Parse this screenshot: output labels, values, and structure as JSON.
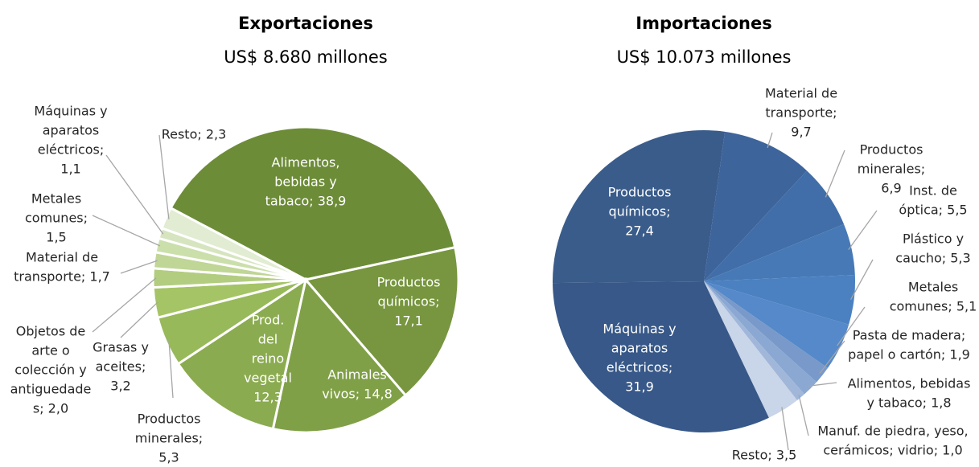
{
  "chart_data": [
    {
      "type": "pie",
      "title": "Exportaciones",
      "subtitle": "US$ 8.680 millones",
      "values": [
        38.9,
        17.1,
        14.8,
        12.3,
        5.3,
        3.2,
        2.0,
        1.7,
        1.5,
        1.1,
        2.3
      ],
      "labels": [
        [
          "Alimentos,",
          "bebidas y",
          "tabaco; 38,9"
        ],
        [
          "Productos",
          "químicos;",
          "17,1"
        ],
        [
          "Animales",
          "vivos; 14,8"
        ],
        [
          "Prod.",
          "del",
          "reino",
          "vegetal",
          "12,3"
        ],
        [
          "Productos",
          "minerales;",
          "5,3"
        ],
        [
          "Grasas y",
          "aceites;",
          "3,2"
        ],
        [
          "Objetos de",
          "arte o",
          "colección y",
          "antiguedade",
          "s; 2,0"
        ],
        [
          "Material de",
          "transporte; 1,7"
        ],
        [
          "Metales",
          "comunes;",
          "1,5"
        ],
        [
          "Máquinas y",
          "aparatos",
          "eléctricos;",
          "1,1"
        ],
        [
          "Resto; 2,3"
        ]
      ],
      "colors": [
        "#6d8c38",
        "#77963f",
        "#80a047",
        "#8bab50",
        "#98b95a",
        "#a5c466",
        "#b3cd80",
        "#c0d696",
        "#cbdfab",
        "#d6e5bf",
        "#e1ecd2"
      ]
    },
    {
      "type": "pie",
      "title": "Importaciones",
      "subtitle": "US$ 10.073 millones",
      "values": [
        9.7,
        6.9,
        5.5,
        5.3,
        5.1,
        1.9,
        1.8,
        1.0,
        3.5,
        31.9,
        27.4
      ],
      "labels": [
        [
          "Material de",
          "transporte;",
          "9,7"
        ],
        [
          "Productos",
          "minerales;",
          "6,9"
        ],
        [
          "Inst. de",
          "óptica; 5,5"
        ],
        [
          "Plástico y",
          "caucho; 5,3"
        ],
        [
          "Metales",
          "comunes; 5,1"
        ],
        [
          "Pasta de madera;",
          "papel o cartón; 1,9"
        ],
        [
          "Alimentos, bebidas",
          "y tabaco; 1,8"
        ],
        [
          "Manuf. de piedra, yeso,",
          "cerámicos; vidrio; 1,0"
        ],
        [
          "Resto; 3,5"
        ],
        [
          "Máquinas y",
          "aparatos",
          "eléctricos;",
          "31,9"
        ],
        [
          "Productos",
          "químicos;",
          "27,4"
        ]
      ],
      "colors": [
        "#3d649b",
        "#416ea8",
        "#4679b6",
        "#4b81c0",
        "#5589c9",
        "#7899c9",
        "#8ba8d2",
        "#a0b7da",
        "#c9d5e8",
        "#375888",
        "#3a5c8b"
      ]
    }
  ]
}
